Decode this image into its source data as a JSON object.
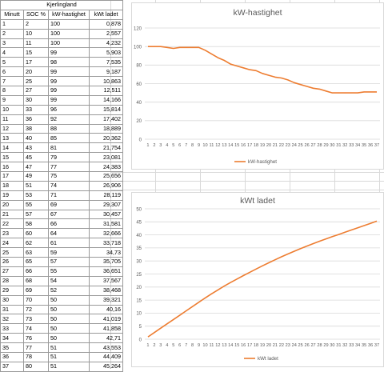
{
  "table": {
    "title": "Kjerlingland",
    "headers": [
      "Minutt",
      "SOC %",
      "kW-hastighet",
      "kWt ladet"
    ],
    "rows": [
      [
        "1",
        "2",
        "100",
        "0,878"
      ],
      [
        "2",
        "10",
        "100",
        "2,557"
      ],
      [
        "3",
        "11",
        "100",
        "4,232"
      ],
      [
        "4",
        "15",
        "99",
        "5,903"
      ],
      [
        "5",
        "17",
        "98",
        "7,535"
      ],
      [
        "6",
        "20",
        "99",
        "9,187"
      ],
      [
        "7",
        "25",
        "99",
        "10,863"
      ],
      [
        "8",
        "27",
        "99",
        "12,511"
      ],
      [
        "9",
        "30",
        "99",
        "14,166"
      ],
      [
        "10",
        "33",
        "96",
        "15,814"
      ],
      [
        "11",
        "36",
        "92",
        "17,402"
      ],
      [
        "12",
        "38",
        "88",
        "18,889"
      ],
      [
        "13",
        "40",
        "85",
        "20,362"
      ],
      [
        "14",
        "43",
        "81",
        "21,754"
      ],
      [
        "15",
        "45",
        "79",
        "23,081"
      ],
      [
        "16",
        "47",
        "77",
        "24,383"
      ],
      [
        "17",
        "49",
        "75",
        "25,656"
      ],
      [
        "18",
        "51",
        "74",
        "26,906"
      ],
      [
        "19",
        "53",
        "71",
        "28,119"
      ],
      [
        "20",
        "55",
        "69",
        "29,307"
      ],
      [
        "21",
        "57",
        "67",
        "30,457"
      ],
      [
        "22",
        "58",
        "66",
        "31,581"
      ],
      [
        "23",
        "60",
        "64",
        "32,666"
      ],
      [
        "24",
        "62",
        "61",
        "33,718"
      ],
      [
        "25",
        "63",
        "59",
        "34,73"
      ],
      [
        "26",
        "65",
        "57",
        "35,705"
      ],
      [
        "27",
        "66",
        "55",
        "36,651"
      ],
      [
        "28",
        "68",
        "54",
        "37,567"
      ],
      [
        "29",
        "69",
        "52",
        "38,468"
      ],
      [
        "30",
        "70",
        "50",
        "39,321"
      ],
      [
        "31",
        "72",
        "50",
        "40,16"
      ],
      [
        "32",
        "73",
        "50",
        "41,019"
      ],
      [
        "33",
        "74",
        "50",
        "41,858"
      ],
      [
        "34",
        "76",
        "50",
        "42,71"
      ],
      [
        "35",
        "77",
        "51",
        "43,553"
      ],
      [
        "36",
        "78",
        "51",
        "44,409"
      ],
      [
        "37",
        "80",
        "51",
        "45,264"
      ]
    ]
  },
  "chart_data": [
    {
      "type": "line",
      "title": "kW-hastighet",
      "categories": [
        "1",
        "2",
        "3",
        "4",
        "5",
        "6",
        "7",
        "8",
        "9",
        "10",
        "11",
        "12",
        "13",
        "14",
        "15",
        "16",
        "17",
        "18",
        "19",
        "20",
        "21",
        "22",
        "23",
        "24",
        "25",
        "26",
        "27",
        "28",
        "29",
        "30",
        "31",
        "32",
        "33",
        "34",
        "35",
        "36",
        "37"
      ],
      "series": [
        {
          "name": "kW-hastighet",
          "values": [
            100,
            100,
            100,
            99,
            98,
            99,
            99,
            99,
            99,
            96,
            92,
            88,
            85,
            81,
            79,
            77,
            75,
            74,
            71,
            69,
            67,
            66,
            64,
            61,
            59,
            57,
            55,
            54,
            52,
            50,
            50,
            50,
            50,
            50,
            51,
            51,
            51
          ]
        }
      ],
      "ylim": [
        0,
        120
      ],
      "yticks": [
        "0",
        "20",
        "40",
        "60",
        "80",
        "100",
        "120"
      ],
      "legend": "bottom",
      "color": "#ED7D31"
    },
    {
      "type": "line",
      "title": "kWt ladet",
      "categories": [
        "1",
        "2",
        "3",
        "4",
        "5",
        "6",
        "7",
        "8",
        "9",
        "10",
        "11",
        "12",
        "13",
        "14",
        "15",
        "16",
        "17",
        "18",
        "19",
        "20",
        "21",
        "22",
        "23",
        "24",
        "25",
        "26",
        "27",
        "28",
        "29",
        "30",
        "31",
        "32",
        "33",
        "34",
        "35",
        "36",
        "37"
      ],
      "series": [
        {
          "name": "kWt ladet",
          "values": [
            0.878,
            2.557,
            4.232,
            5.903,
            7.535,
            9.187,
            10.863,
            12.511,
            14.166,
            15.814,
            17.402,
            18.889,
            20.362,
            21.754,
            23.081,
            24.383,
            25.656,
            26.906,
            28.119,
            29.307,
            30.457,
            31.581,
            32.666,
            33.718,
            34.73,
            35.705,
            36.651,
            37.567,
            38.468,
            39.321,
            40.16,
            41.019,
            41.858,
            42.71,
            43.553,
            44.409,
            45.264
          ]
        }
      ],
      "ylim": [
        0,
        50
      ],
      "yticks": [
        "0",
        "5",
        "10",
        "15",
        "20",
        "25",
        "30",
        "35",
        "40",
        "45",
        "50"
      ],
      "legend": "bottom",
      "color": "#ED7D31"
    }
  ]
}
